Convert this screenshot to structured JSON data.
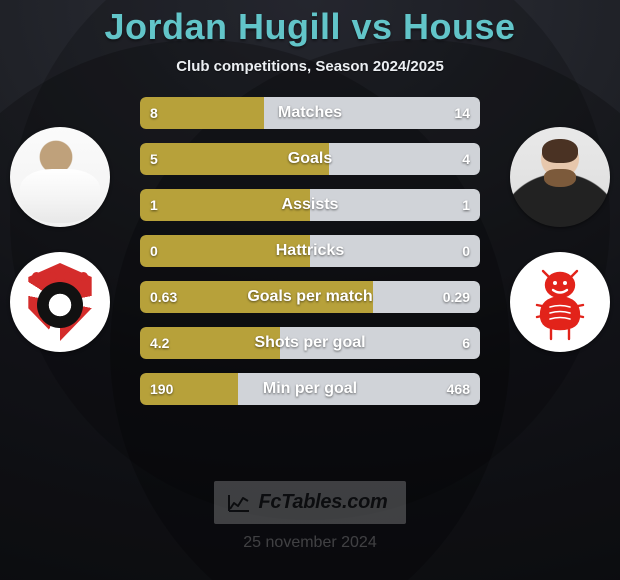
{
  "title_line": "Jordan Hugill vs House",
  "subtitle": "Club competitions, Season 2024/2025",
  "title_color": "#62c5c9",
  "colors": {
    "p1": "#b7a13a",
    "p2": "#d0d3d8",
    "track": "#1e2026"
  },
  "footer": {
    "brand": "FcTables.com",
    "date": "25 november 2024"
  },
  "bars": [
    {
      "label": "Matches",
      "p1_display": "8",
      "p2_display": "14",
      "p1_frac": 0.364,
      "p2_frac": 0.636
    },
    {
      "label": "Goals",
      "p1_display": "5",
      "p2_display": "4",
      "p1_frac": 0.556,
      "p2_frac": 0.444
    },
    {
      "label": "Assists",
      "p1_display": "1",
      "p2_display": "1",
      "p1_frac": 0.5,
      "p2_frac": 0.5
    },
    {
      "label": "Hattricks",
      "p1_display": "0",
      "p2_display": "0",
      "p1_frac": 0.5,
      "p2_frac": 0.5
    },
    {
      "label": "Goals per match",
      "p1_display": "0.63",
      "p2_display": "0.29",
      "p1_frac": 0.685,
      "p2_frac": 0.315
    },
    {
      "label": "Shots per goal",
      "p1_display": "4.2",
      "p2_display": "6",
      "p1_frac": 0.412,
      "p2_frac": 0.588
    },
    {
      "label": "Min per goal",
      "p1_display": "190",
      "p2_display": "468",
      "p1_frac": 0.289,
      "p2_frac": 0.711
    }
  ]
}
